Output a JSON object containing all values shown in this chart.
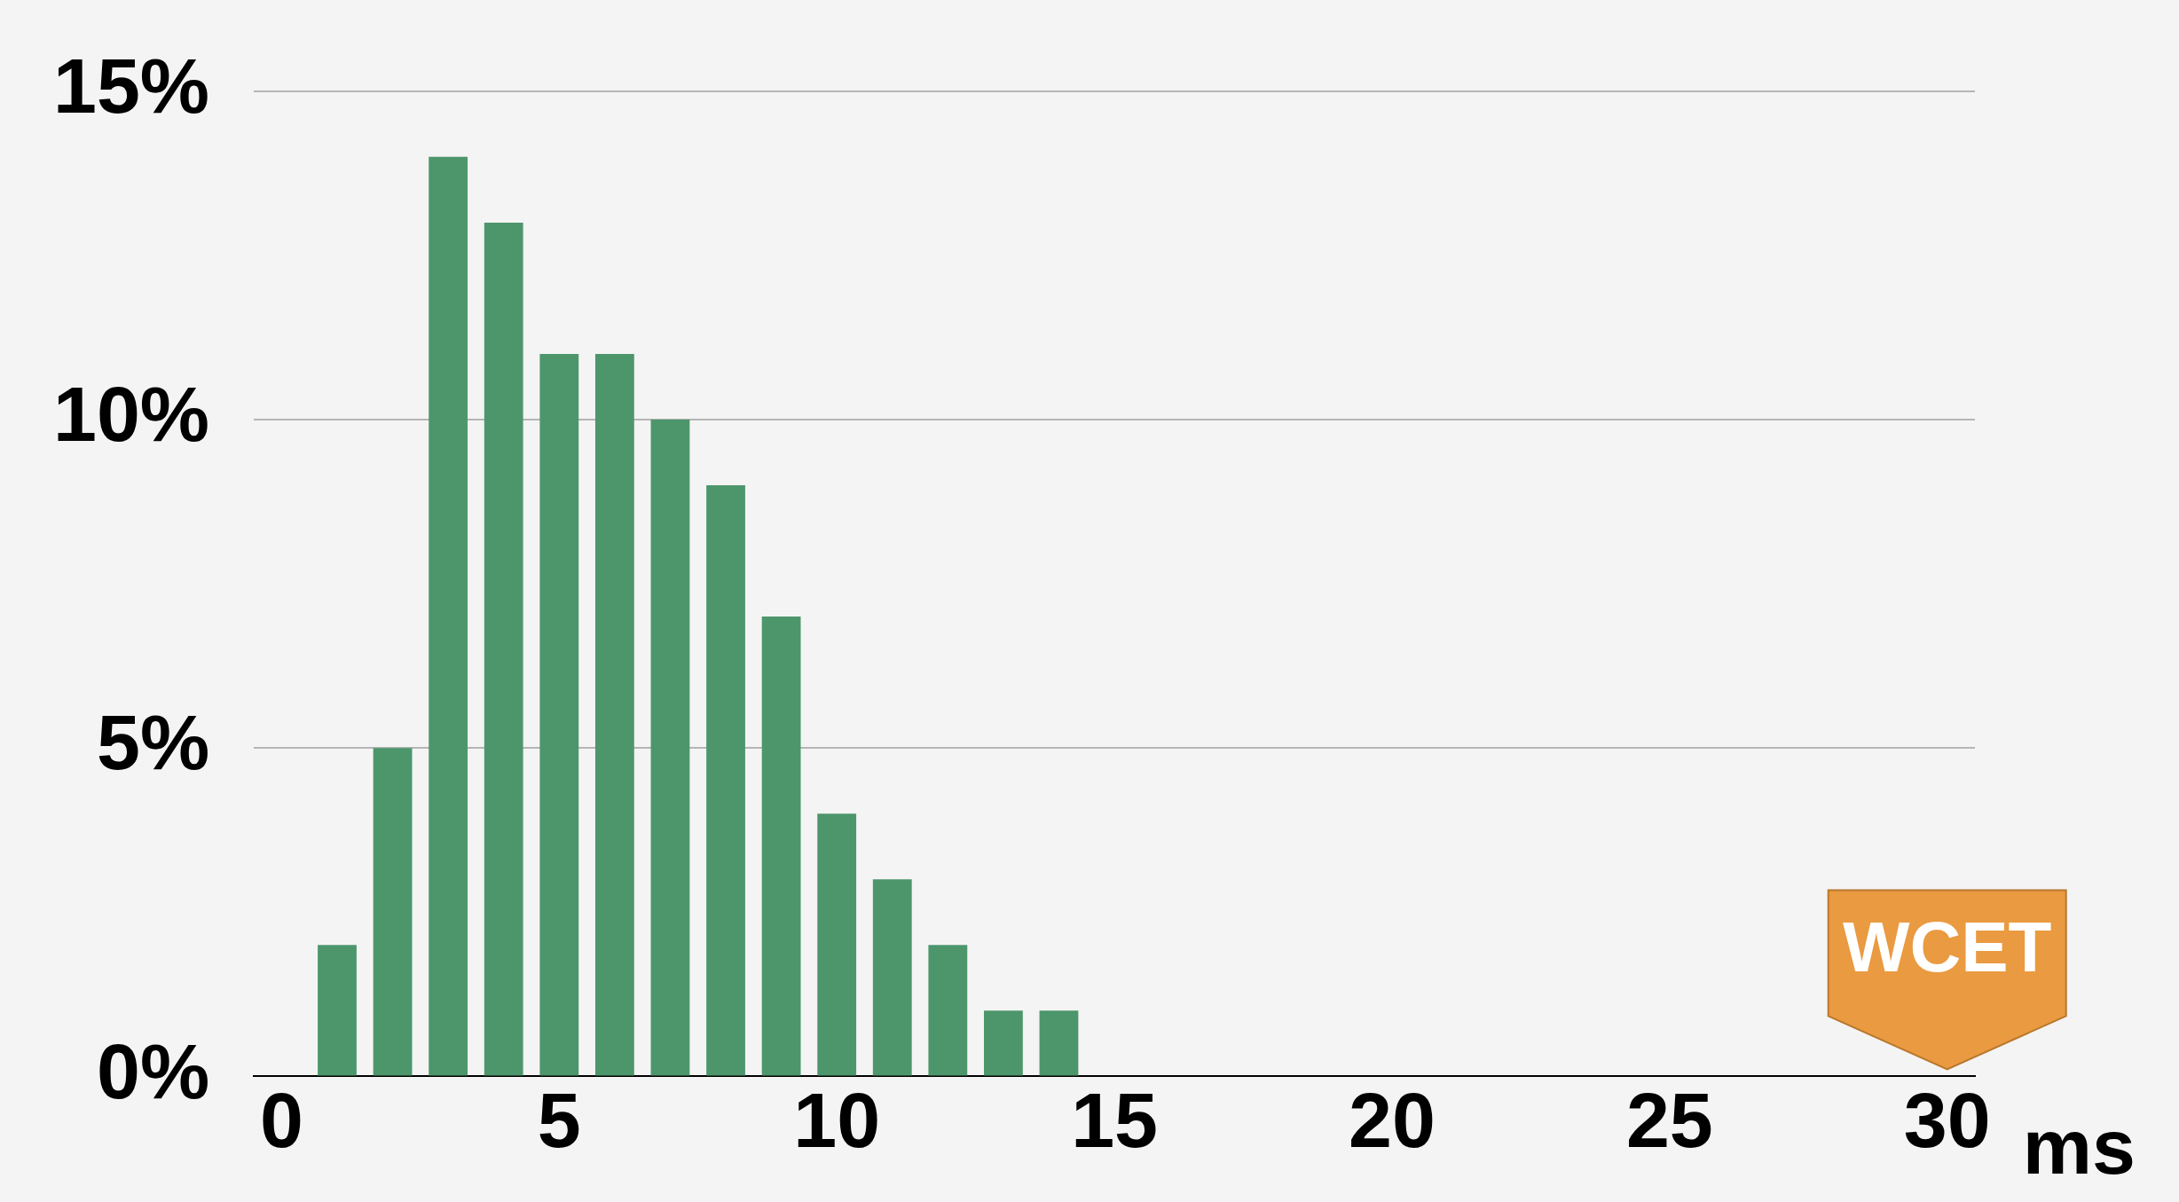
{
  "chart_data": {
    "type": "bar",
    "xlabel": "ms",
    "x": [
      1,
      2,
      3,
      4,
      5,
      6,
      7,
      8,
      9,
      10,
      11,
      12,
      13,
      14
    ],
    "values": [
      2,
      5,
      14,
      13,
      11,
      11,
      10,
      9,
      7,
      4,
      3,
      2,
      1,
      1
    ],
    "color": "#4d966c",
    "xlim": [
      -0.5,
      30.5
    ],
    "xticks": [
      0,
      5,
      10,
      15,
      20,
      25,
      30
    ],
    "ylim": [
      0,
      15
    ],
    "yticks": [
      {
        "value": 0,
        "label": "0%"
      },
      {
        "value": 5,
        "label": "5%"
      },
      {
        "value": 10,
        "label": "10%"
      },
      {
        "value": 15,
        "label": "15%"
      }
    ],
    "grid": "y",
    "legend": false,
    "annotations": [
      "WCET"
    ]
  }
}
